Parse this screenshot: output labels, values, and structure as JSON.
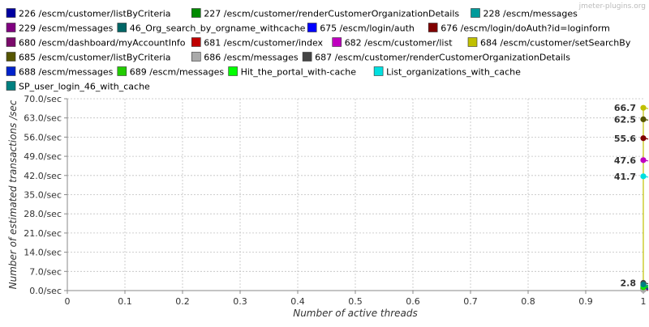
{
  "watermark": "jmeter-plugins.org",
  "chart_data": {
    "type": "line",
    "title": "",
    "xlabel": "Number of active threads",
    "ylabel": "Number of estimated transactions /sec",
    "xlim": [
      0,
      1
    ],
    "ylim": [
      0,
      70
    ],
    "x_ticks": [
      "0",
      "0.1",
      "0.2",
      "0.3",
      "0.4",
      "0.5",
      "0.6",
      "0.7",
      "0.8",
      "0.9",
      "1"
    ],
    "y_ticks": [
      "0.0/sec",
      "7.0/sec",
      "14.0/sec",
      "21.0/sec",
      "28.0/sec",
      "35.0/sec",
      "42.0/sec",
      "49.0/sec",
      "56.0/sec",
      "63.0/sec",
      "70.0/sec"
    ],
    "grid": true,
    "legend_position": "top",
    "series": [
      {
        "name": "226 /escm/customer/listByCriteria",
        "color": "#0000a0",
        "x": [
          1
        ],
        "y": [
          0.5
        ]
      },
      {
        "name": "227 /escm/customer/renderCustomerOrganizationDetails",
        "color": "#008a00",
        "x": [
          1
        ],
        "y": [
          0.6
        ]
      },
      {
        "name": "228 /escm/messages",
        "color": "#009a9a",
        "x": [
          1
        ],
        "y": [
          0.7
        ]
      },
      {
        "name": "229 /escm/messages",
        "color": "#800080",
        "x": [
          1
        ],
        "y": [
          0.8
        ]
      },
      {
        "name": "46_Org_search_by_orgname_withcache",
        "color": "#006666",
        "x": [
          1
        ],
        "y": [
          1.0
        ]
      },
      {
        "name": "675 /escm/login/auth",
        "color": "#0000ff",
        "x": [
          1
        ],
        "y": [
          0.9
        ]
      },
      {
        "name": "676 /escm/login/doAuth?id=loginform",
        "color": "#800000",
        "x": [
          1
        ],
        "y": [
          55.6
        ],
        "label": "55.6"
      },
      {
        "name": "680 /escm/dashboard/myAccountInfo",
        "color": "#7a0a6a",
        "x": [
          1
        ],
        "y": [
          0.4
        ]
      },
      {
        "name": "681 /escm/customer/index",
        "color": "#c00000",
        "x": [
          1
        ],
        "y": [
          0.3
        ]
      },
      {
        "name": "682 /escm/customer/list",
        "color": "#c000c0",
        "x": [
          1
        ],
        "y": [
          47.6
        ],
        "label": "47.6"
      },
      {
        "name": "684 /escm/customer/setSearchBy",
        "color": "#c0c000",
        "x": [
          1
        ],
        "y": [
          66.7
        ],
        "label": "66.7"
      },
      {
        "name": "685 /escm/customer/listByCriteria",
        "color": "#555500",
        "x": [
          1
        ],
        "y": [
          62.5
        ],
        "label": "62.5"
      },
      {
        "name": "686 /escm/messages",
        "color": "#aaaaaa",
        "x": [
          1
        ],
        "y": [
          0.2
        ]
      },
      {
        "name": "687 /escm/customer/renderCustomerOrganizationDetails",
        "color": "#444444",
        "x": [
          1
        ],
        "y": [
          2.8
        ],
        "label": "2.8"
      },
      {
        "name": "688 /escm/messages",
        "color": "#0022cc",
        "x": [
          1
        ],
        "y": [
          1.5
        ]
      },
      {
        "name": "689 /escm/messages",
        "color": "#22cc00",
        "x": [
          1
        ],
        "y": [
          1.2
        ]
      },
      {
        "name": "Hit_the_portal_with-cache",
        "color": "#00ff00",
        "x": [
          1
        ],
        "y": [
          1.8
        ]
      },
      {
        "name": "List_organizations_with_cache",
        "color": "#00e0e0",
        "x": [
          1
        ],
        "y": [
          41.7
        ],
        "label": "41.7"
      },
      {
        "name": "SP_user_login_46_with_cache",
        "color": "#008080",
        "x": [
          1
        ],
        "y": [
          2.2
        ]
      }
    ]
  }
}
